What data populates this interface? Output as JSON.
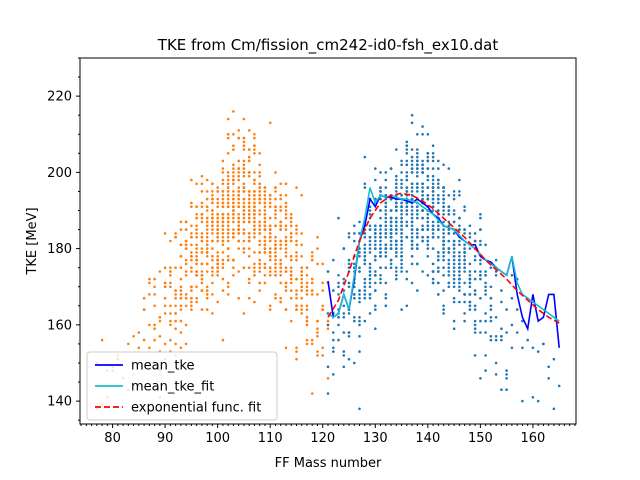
{
  "chart_data": {
    "type": "scatter",
    "title": "TKE from  Cm/fission_cm242-id0-fsh_ex10.dat",
    "xlabel": "FF Mass number",
    "ylabel": "TKE [MeV]",
    "xlim": [
      73.8,
      168.2
    ],
    "ylim": [
      134.0,
      230.0
    ],
    "xticks": [
      80,
      90,
      100,
      110,
      120,
      130,
      140,
      150,
      160
    ],
    "yticks": [
      140,
      160,
      180,
      200,
      220
    ],
    "legend_position": "lower-left",
    "scatter_groups": [
      {
        "color": "#ff7f0e",
        "x_range": [
          77,
          121
        ],
        "peak_x": 104.5,
        "tke_peak": 194,
        "description_counts": "light fragment scatter"
      },
      {
        "color": "#1f77b4",
        "x_range": [
          121,
          165
        ],
        "peak_x": 137.5,
        "tke_peak": 194,
        "description_counts": "heavy fragment scatter"
      }
    ],
    "series": [
      {
        "name": "mean_tke",
        "color": "#0000ff",
        "style": "solid",
        "x": [
          121,
          122,
          123,
          124,
          125,
          126,
          127,
          128,
          129,
          130,
          131,
          132,
          133,
          134,
          135,
          136,
          137,
          138,
          139,
          140,
          141,
          142,
          143,
          144,
          145,
          146,
          147,
          148,
          149,
          150,
          151,
          152,
          153,
          154,
          155,
          156,
          157,
          158,
          159,
          160,
          161,
          162,
          163,
          164,
          165
        ],
        "y": [
          171.5,
          162.0,
          163.0,
          168.0,
          164.0,
          172.0,
          182.0,
          186.0,
          193.0,
          191.0,
          194.0,
          193.5,
          193.5,
          193.0,
          193.0,
          192.5,
          192.0,
          193.0,
          192.0,
          191.0,
          189.0,
          188.0,
          186.0,
          185.5,
          185.0,
          183.0,
          182.0,
          181.0,
          181.0,
          178.0,
          177.0,
          176.5,
          175.0,
          174.0,
          173.0,
          178.0,
          168.0,
          162.0,
          159.0,
          168.0,
          161.0,
          162.0,
          168.0,
          168.0,
          154.0
        ]
      },
      {
        "name": "mean_tke_fit",
        "color": "#17becf",
        "style": "solid",
        "x": [
          121,
          122,
          123,
          124,
          125,
          126,
          127,
          128,
          129,
          130,
          131,
          132,
          133,
          134,
          135,
          136,
          137,
          138,
          139,
          140,
          141,
          142,
          143,
          144,
          145,
          146,
          147,
          148,
          149,
          150,
          151,
          152,
          153,
          154,
          155,
          156,
          157,
          158,
          159,
          160,
          161,
          162,
          163,
          164,
          165
        ],
        "y": [
          163.0,
          162.0,
          163.0,
          168.0,
          164.0,
          173.0,
          182.0,
          188.0,
          196.0,
          192.0,
          194.0,
          193.5,
          194.0,
          193.5,
          193.0,
          193.0,
          192.5,
          192.0,
          191.0,
          190.0,
          189.0,
          187.5,
          186.0,
          185.5,
          185.0,
          183.5,
          182.0,
          181.0,
          180.0,
          178.5,
          177.0,
          176.0,
          175.0,
          174.0,
          173.0,
          178.0,
          171.0,
          168.0,
          167.0,
          166.0,
          165.0,
          164.0,
          163.0,
          162.0,
          161.0
        ]
      },
      {
        "name": "exponential func. fit",
        "color": "#ff0000",
        "style": "dashed",
        "x": [
          121,
          123,
          125,
          127,
          129,
          131,
          133,
          135,
          137,
          139,
          141,
          143,
          145,
          147,
          149,
          151,
          153,
          155,
          157,
          159,
          161,
          163,
          165
        ],
        "y": [
          162.0,
          166.5,
          174.0,
          182.0,
          188.0,
          192.0,
          194.0,
          194.5,
          194.0,
          192.5,
          190.5,
          188.0,
          185.5,
          183.0,
          180.0,
          177.0,
          174.5,
          172.0,
          169.0,
          166.5,
          164.0,
          162.0,
          160.5
        ]
      }
    ]
  }
}
